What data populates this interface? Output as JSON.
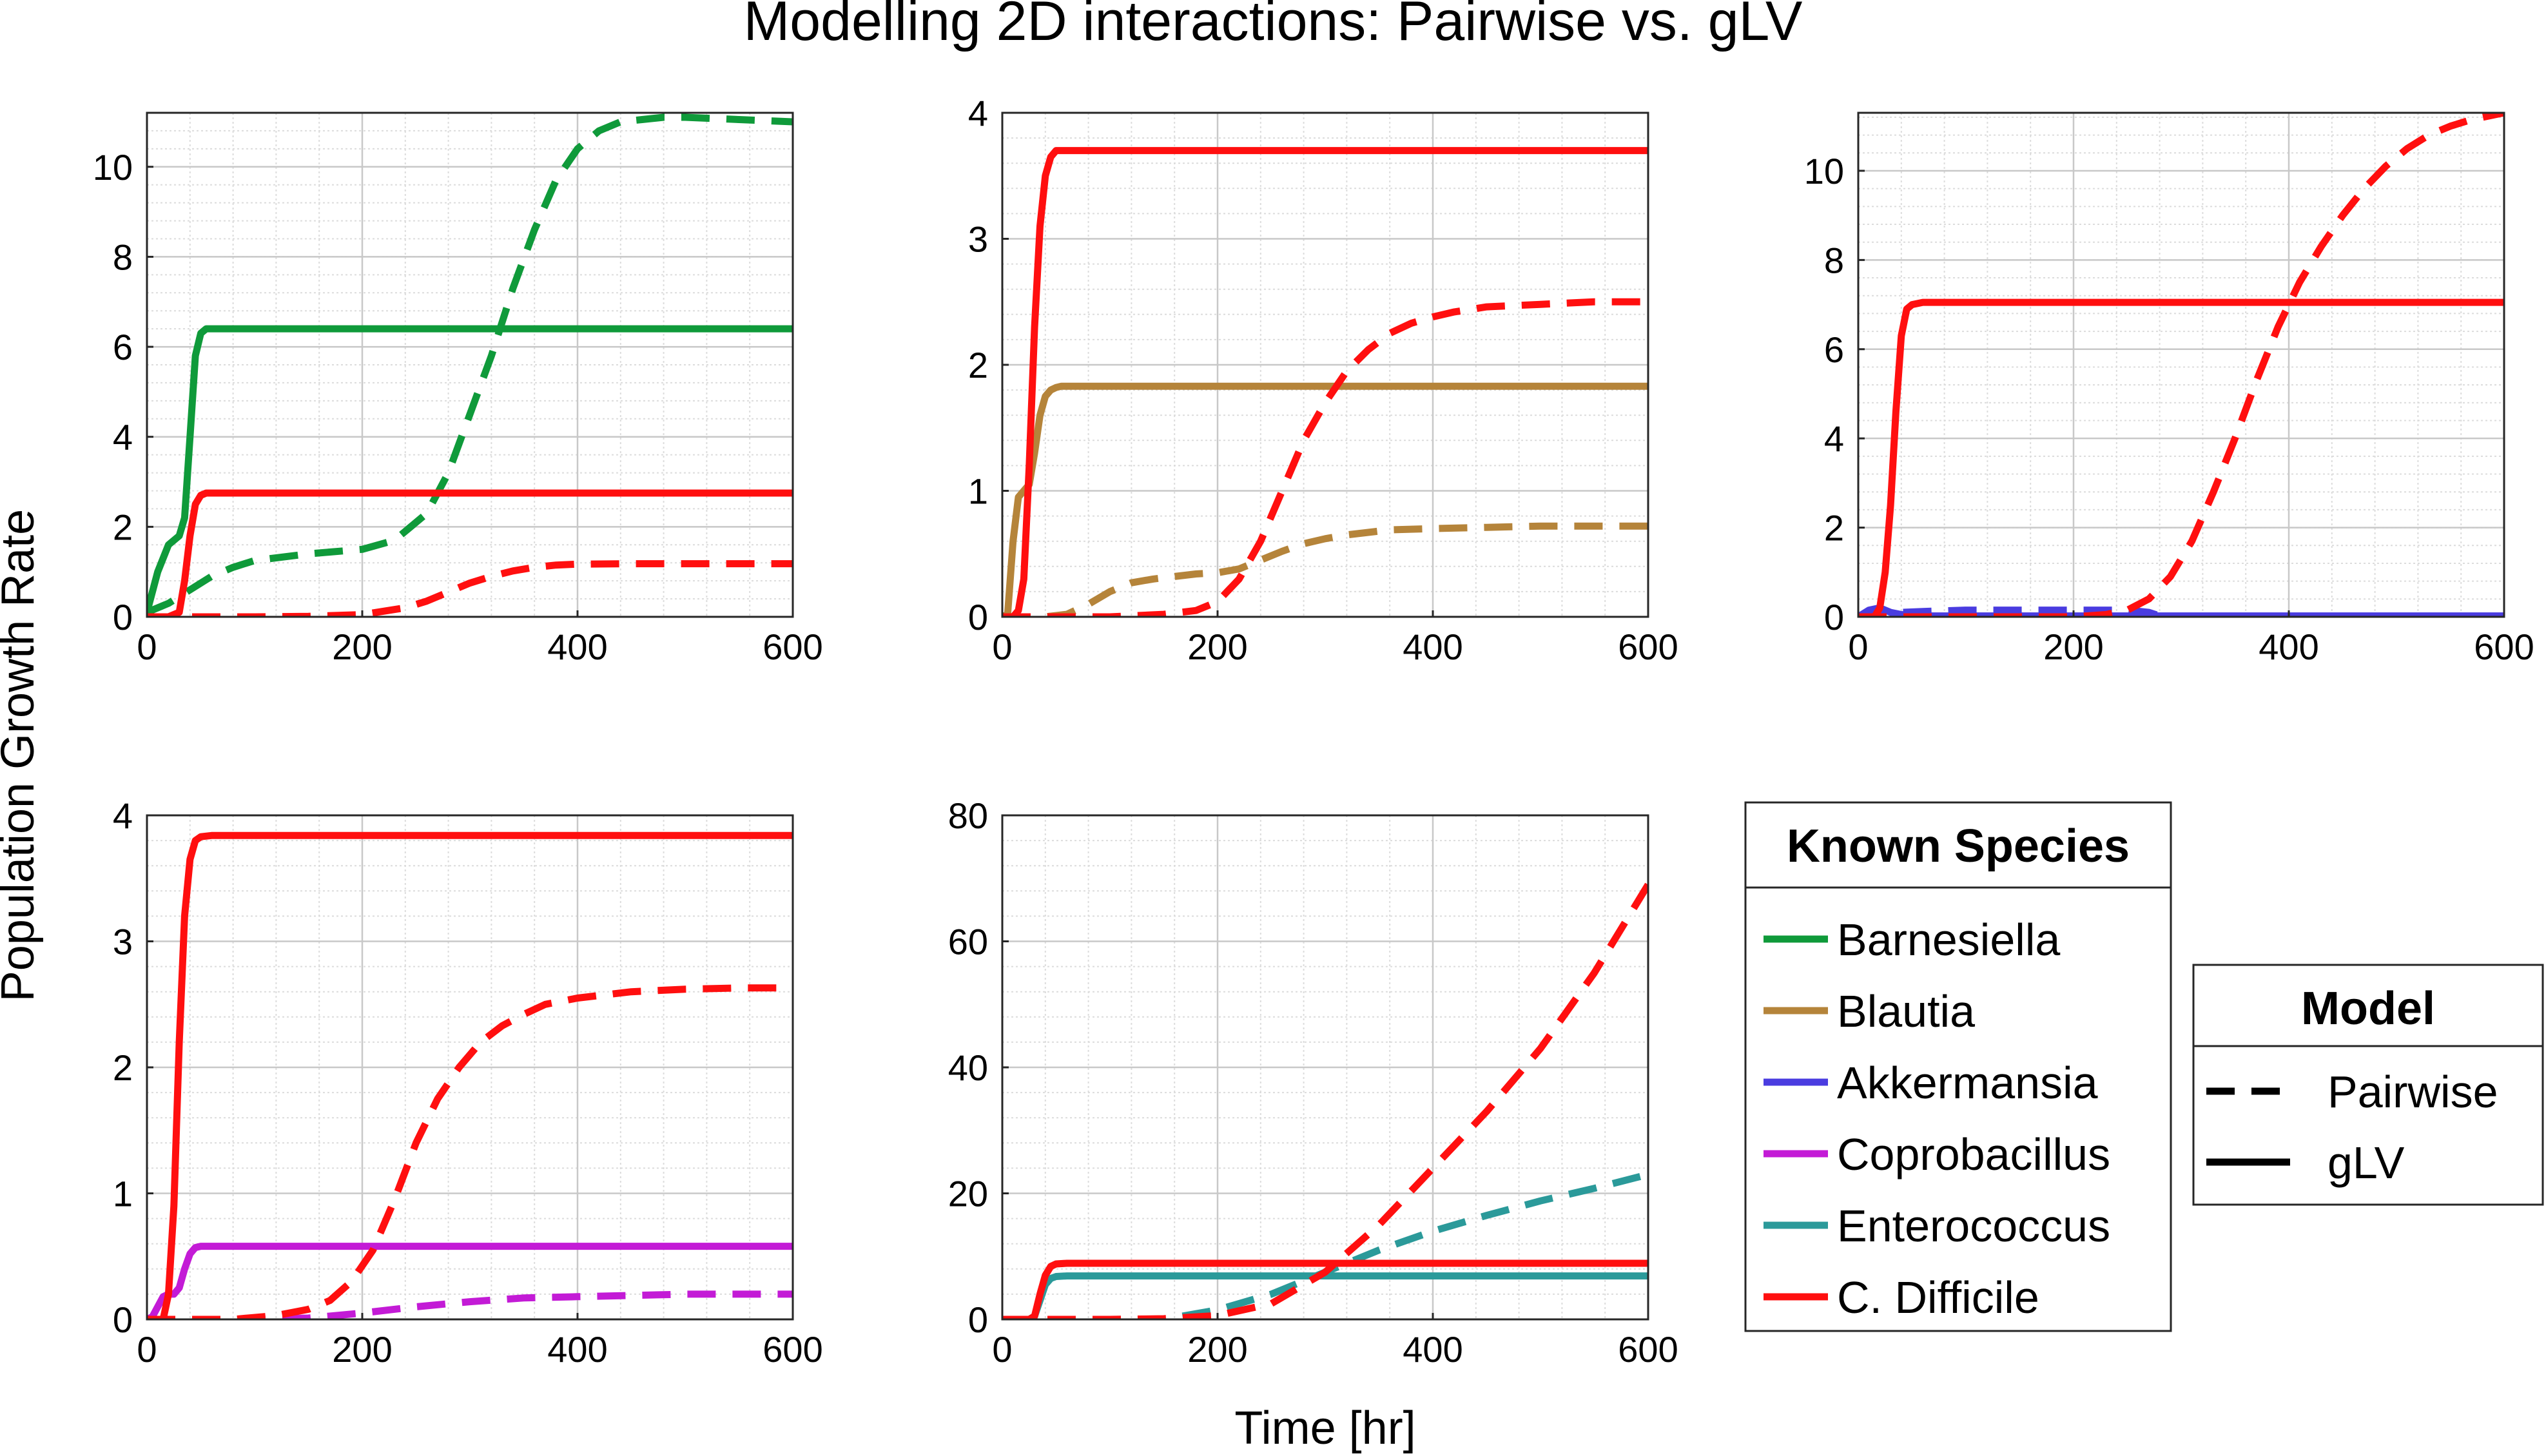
{
  "figure": {
    "title": "Modelling 2D interactions: Pairwise vs. gLV",
    "ylabel": "Population Growth Rate",
    "xlabel": "Time [hr]"
  },
  "colors": {
    "Barnesiella": "#0f9a3a",
    "Blautia": "#b5843a",
    "Akkermansia": "#4a3ce0",
    "Coprobacillus": "#c31bd6",
    "Enterococcus": "#2b9a9a",
    "C. Difficile": "#ff0f0f"
  },
  "legend_species": {
    "title": "Known Species",
    "entries": [
      "Barnesiella",
      "Blautia",
      "Akkermansia",
      "Coprobacillus",
      "Enterococcus",
      "C. Difficile"
    ]
  },
  "legend_model": {
    "title": "Model",
    "entries": [
      {
        "label": "Pairwise",
        "style": "dashed"
      },
      {
        "label": "gLV",
        "style": "solid"
      }
    ]
  },
  "chart_data": [
    {
      "type": "line",
      "xlim": [
        0,
        600
      ],
      "ylim": [
        0,
        11.2
      ],
      "xticks": [
        0,
        200,
        400,
        600
      ],
      "yticks": [
        0,
        2,
        4,
        6,
        8,
        10
      ],
      "grid": true,
      "series": [
        {
          "species": "Barnesiella",
          "model": "gLV",
          "x": [
            0,
            10,
            20,
            30,
            35,
            40,
            45,
            50,
            55,
            60,
            80,
            100,
            200,
            300,
            400,
            500,
            600
          ],
          "y": [
            0.1,
            1.0,
            1.6,
            1.8,
            2.2,
            4.0,
            5.8,
            6.3,
            6.4,
            6.4,
            6.4,
            6.4,
            6.4,
            6.4,
            6.4,
            6.4,
            6.4
          ]
        },
        {
          "species": "Barnesiella",
          "model": "Pairwise",
          "x": [
            0,
            20,
            40,
            60,
            80,
            100,
            150,
            200,
            230,
            260,
            280,
            300,
            320,
            340,
            360,
            380,
            400,
            420,
            440,
            460,
            480,
            500,
            550,
            600
          ],
          "y": [
            0.1,
            0.3,
            0.6,
            0.9,
            1.1,
            1.25,
            1.4,
            1.5,
            1.7,
            2.3,
            3.2,
            4.5,
            5.8,
            7.3,
            8.6,
            9.7,
            10.4,
            10.8,
            11.0,
            11.05,
            11.1,
            11.1,
            11.05,
            11.0
          ]
        },
        {
          "species": "C. Difficile",
          "model": "gLV",
          "x": [
            0,
            20,
            30,
            35,
            40,
            45,
            50,
            55,
            60,
            100,
            200,
            400,
            600
          ],
          "y": [
            0,
            0,
            0.1,
            0.8,
            1.8,
            2.5,
            2.7,
            2.75,
            2.75,
            2.75,
            2.75,
            2.75,
            2.75
          ]
        },
        {
          "species": "C. Difficile",
          "model": "Pairwise",
          "x": [
            0,
            100,
            150,
            200,
            240,
            260,
            280,
            300,
            320,
            340,
            360,
            380,
            400,
            450,
            500,
            600
          ],
          "y": [
            0,
            0,
            0.01,
            0.05,
            0.2,
            0.35,
            0.55,
            0.75,
            0.9,
            1.02,
            1.1,
            1.15,
            1.17,
            1.18,
            1.18,
            1.18
          ]
        }
      ]
    },
    {
      "type": "line",
      "xlim": [
        0,
        600
      ],
      "ylim": [
        0,
        4
      ],
      "xticks": [
        0,
        200,
        400,
        600
      ],
      "yticks": [
        0,
        1,
        2,
        3,
        4
      ],
      "grid": true,
      "series": [
        {
          "species": "Blautia",
          "model": "gLV",
          "x": [
            0,
            5,
            10,
            15,
            20,
            25,
            30,
            35,
            40,
            45,
            50,
            55,
            60,
            100,
            200,
            400,
            600
          ],
          "y": [
            0,
            0.02,
            0.6,
            0.95,
            1.0,
            1.05,
            1.3,
            1.6,
            1.75,
            1.8,
            1.82,
            1.83,
            1.83,
            1.83,
            1.83,
            1.83,
            1.83
          ]
        },
        {
          "species": "Blautia",
          "model": "Pairwise",
          "x": [
            0,
            40,
            60,
            80,
            100,
            120,
            140,
            160,
            180,
            200,
            220,
            240,
            260,
            280,
            300,
            320,
            340,
            360,
            400,
            450,
            500,
            550,
            600
          ],
          "y": [
            0,
            0,
            0.02,
            0.1,
            0.2,
            0.27,
            0.3,
            0.32,
            0.34,
            0.35,
            0.38,
            0.45,
            0.52,
            0.58,
            0.62,
            0.65,
            0.67,
            0.69,
            0.7,
            0.71,
            0.72,
            0.72,
            0.72
          ]
        },
        {
          "species": "C. Difficile",
          "model": "gLV",
          "x": [
            0,
            10,
            15,
            20,
            25,
            30,
            35,
            40,
            45,
            50,
            55,
            60,
            100,
            200,
            400,
            600
          ],
          "y": [
            0,
            0,
            0.05,
            0.3,
            1.2,
            2.3,
            3.1,
            3.5,
            3.65,
            3.7,
            3.7,
            3.7,
            3.7,
            3.7,
            3.7,
            3.7
          ]
        },
        {
          "species": "C. Difficile",
          "model": "Pairwise",
          "x": [
            0,
            100,
            150,
            180,
            200,
            220,
            240,
            260,
            280,
            300,
            320,
            340,
            360,
            380,
            400,
            420,
            450,
            500,
            550,
            600
          ],
          "y": [
            0,
            0,
            0.02,
            0.05,
            0.12,
            0.3,
            0.6,
            1.0,
            1.4,
            1.7,
            1.95,
            2.12,
            2.25,
            2.33,
            2.38,
            2.42,
            2.46,
            2.48,
            2.5,
            2.5
          ]
        }
      ]
    },
    {
      "type": "line",
      "xlim": [
        0,
        600
      ],
      "ylim": [
        0,
        11.3
      ],
      "xticks": [
        0,
        200,
        400,
        600
      ],
      "yticks": [
        0,
        2,
        4,
        6,
        8,
        10
      ],
      "grid": true,
      "series": [
        {
          "species": "Akkermansia",
          "model": "gLV",
          "x": [
            0,
            10,
            20,
            30,
            40,
            60,
            600
          ],
          "y": [
            0,
            0.15,
            0.2,
            0.1,
            0.05,
            0.02,
            0.02
          ]
        },
        {
          "species": "Akkermansia",
          "model": "Pairwise",
          "x": [
            0,
            20,
            40,
            60,
            100,
            150,
            200,
            250,
            270,
            280,
            300,
            600
          ],
          "y": [
            0,
            0.05,
            0.1,
            0.12,
            0.15,
            0.15,
            0.15,
            0.15,
            0.1,
            0.02,
            0,
            0
          ]
        },
        {
          "species": "C. Difficile",
          "model": "gLV",
          "x": [
            0,
            15,
            20,
            25,
            30,
            35,
            40,
            45,
            50,
            60,
            100,
            200,
            400,
            600
          ],
          "y": [
            0,
            0,
            0.2,
            1.0,
            2.5,
            4.6,
            6.3,
            6.9,
            7.0,
            7.05,
            7.05,
            7.05,
            7.05,
            7.05
          ]
        },
        {
          "species": "C. Difficile",
          "model": "Pairwise",
          "x": [
            0,
            200,
            230,
            250,
            270,
            290,
            310,
            330,
            350,
            370,
            390,
            410,
            430,
            450,
            470,
            490,
            510,
            530,
            550,
            570,
            600
          ],
          "y": [
            0,
            0,
            0.05,
            0.15,
            0.4,
            0.9,
            1.7,
            2.8,
            4.0,
            5.3,
            6.5,
            7.5,
            8.3,
            9.0,
            9.6,
            10.1,
            10.5,
            10.8,
            11.0,
            11.15,
            11.3
          ]
        }
      ]
    },
    {
      "type": "line",
      "xlim": [
        0,
        600
      ],
      "ylim": [
        0,
        4
      ],
      "xticks": [
        0,
        200,
        400,
        600
      ],
      "yticks": [
        0,
        1,
        2,
        3,
        4
      ],
      "grid": true,
      "series": [
        {
          "species": "Coprobacillus",
          "model": "gLV",
          "x": [
            0,
            5,
            10,
            15,
            20,
            25,
            30,
            35,
            40,
            45,
            50,
            60,
            100,
            200,
            400,
            600
          ],
          "y": [
            0,
            0.02,
            0.1,
            0.18,
            0.2,
            0.2,
            0.25,
            0.4,
            0.52,
            0.57,
            0.58,
            0.58,
            0.58,
            0.58,
            0.58,
            0.58
          ]
        },
        {
          "species": "Coprobacillus",
          "model": "Pairwise",
          "x": [
            0,
            100,
            150,
            200,
            250,
            300,
            350,
            400,
            450,
            500,
            600
          ],
          "y": [
            0,
            0,
            0.01,
            0.05,
            0.1,
            0.14,
            0.17,
            0.18,
            0.19,
            0.2,
            0.2
          ]
        },
        {
          "species": "C. Difficile",
          "model": "gLV",
          "x": [
            0,
            15,
            20,
            25,
            30,
            35,
            40,
            45,
            50,
            60,
            100,
            200,
            400,
            600
          ],
          "y": [
            0,
            0,
            0.2,
            0.9,
            2.2,
            3.2,
            3.65,
            3.8,
            3.83,
            3.84,
            3.84,
            3.84,
            3.84,
            3.84
          ]
        },
        {
          "species": "C. Difficile",
          "model": "Pairwise",
          "x": [
            0,
            80,
            120,
            150,
            170,
            190,
            210,
            230,
            250,
            270,
            290,
            310,
            330,
            350,
            370,
            400,
            450,
            500,
            550,
            600
          ],
          "y": [
            0,
            0,
            0.03,
            0.08,
            0.15,
            0.3,
            0.55,
            0.95,
            1.4,
            1.75,
            2.0,
            2.2,
            2.33,
            2.42,
            2.5,
            2.55,
            2.6,
            2.62,
            2.63,
            2.63
          ]
        }
      ]
    },
    {
      "type": "line",
      "xlim": [
        0,
        600
      ],
      "ylim": [
        0,
        80
      ],
      "xticks": [
        0,
        200,
        400,
        600
      ],
      "yticks": [
        0,
        20,
        40,
        60,
        80
      ],
      "grid": true,
      "series": [
        {
          "species": "Enterococcus",
          "model": "gLV",
          "x": [
            0,
            25,
            30,
            35,
            40,
            45,
            50,
            60,
            100,
            200,
            400,
            600
          ],
          "y": [
            0,
            0,
            0.5,
            3.0,
            5.5,
            6.5,
            6.8,
            6.9,
            6.9,
            6.9,
            6.9,
            6.9
          ]
        },
        {
          "species": "Enterococcus",
          "model": "Pairwise",
          "x": [
            0,
            150,
            200,
            250,
            300,
            350,
            400,
            450,
            500,
            550,
            600
          ],
          "y": [
            0,
            0,
            1.5,
            4.0,
            7.5,
            11.0,
            14.0,
            16.5,
            18.8,
            20.8,
            23.0
          ]
        },
        {
          "species": "C. Difficile",
          "model": "gLV",
          "x": [
            0,
            25,
            30,
            35,
            40,
            45,
            50,
            60,
            100,
            200,
            400,
            600
          ],
          "y": [
            0,
            0,
            0.5,
            4.0,
            7.0,
            8.4,
            8.8,
            8.9,
            8.9,
            8.9,
            8.9,
            8.9
          ]
        },
        {
          "species": "C. Difficile",
          "model": "Pairwise",
          "x": [
            0,
            100,
            150,
            200,
            250,
            300,
            350,
            400,
            450,
            500,
            550,
            600
          ],
          "y": [
            0,
            0,
            0.1,
            0.6,
            2.5,
            7.5,
            15.0,
            24.0,
            33.0,
            43.0,
            55.0,
            69.0
          ]
        }
      ]
    }
  ]
}
